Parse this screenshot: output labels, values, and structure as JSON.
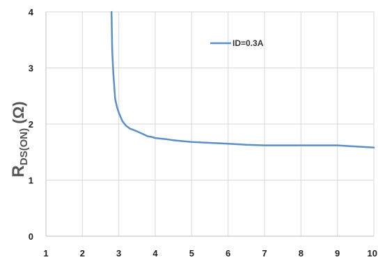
{
  "chart_data": {
    "type": "line",
    "xlim": [
      1,
      10
    ],
    "ylim": [
      0,
      4
    ],
    "x_ticks": [
      "1",
      "2",
      "3",
      "4",
      "5",
      "6",
      "7",
      "8",
      "9",
      "10"
    ],
    "y_ticks": [
      "0",
      "1",
      "2",
      "3",
      "4"
    ],
    "ylabel": {
      "main": "R",
      "subscript": "DS(ON)",
      "unit": " (Ω)"
    },
    "xlabel": "",
    "grid": true,
    "legend_position": "top-center",
    "series": [
      {
        "name": "ID=0.3A",
        "color": "#5b8fc7",
        "x": [
          2.8,
          2.82,
          2.85,
          2.9,
          2.95,
          3.0,
          3.1,
          3.2,
          3.3,
          3.5,
          3.7,
          3.8,
          3.9,
          4.0,
          4.3,
          4.5,
          5.0,
          6.0,
          6.5,
          7.0,
          8.0,
          9.0,
          10.0
        ],
        "y": [
          4.0,
          3.3,
          2.9,
          2.45,
          2.3,
          2.2,
          2.05,
          1.97,
          1.92,
          1.87,
          1.81,
          1.78,
          1.77,
          1.75,
          1.73,
          1.71,
          1.68,
          1.65,
          1.63,
          1.62,
          1.62,
          1.62,
          1.58
        ]
      }
    ]
  }
}
